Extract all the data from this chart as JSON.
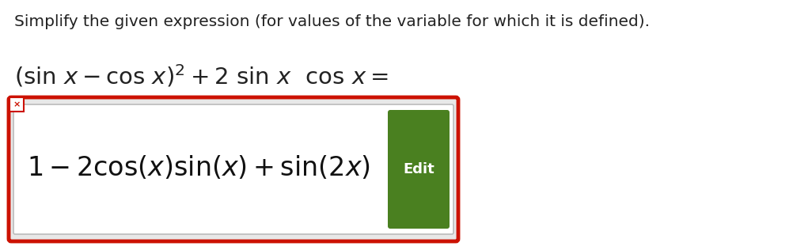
{
  "bg_color": "#ffffff",
  "instruction_text": "Simplify the given expression (for values of the variable for which it is defined).",
  "instruction_color": "#222222",
  "instruction_fontsize": 14.5,
  "expression_color": "#222222",
  "expression_fontsize": 21,
  "answer_color": "#111111",
  "answer_fontsize": 24,
  "edit_button_color": "#4a8020",
  "edit_button_text": "Edit",
  "edit_button_text_color": "#ffffff",
  "edit_button_fontsize": 13,
  "box_edge_color": "#cc1100",
  "box_fill_color": "#e8e8e8",
  "inner_box_fill": "#ffffff",
  "inner_box_edge": "#bbbbbb",
  "x_icon_color": "#cc1100",
  "x_icon_bg": "#ffffff",
  "fig_width": 10.02,
  "fig_height": 3.16,
  "dpi": 100
}
